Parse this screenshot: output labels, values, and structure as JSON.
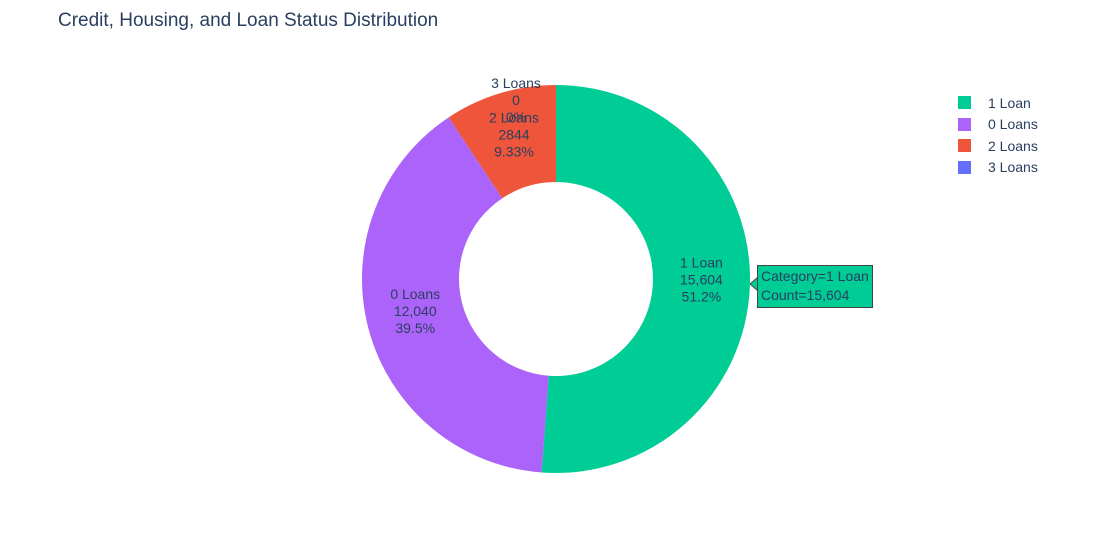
{
  "chart_data": {
    "type": "pie",
    "hole": 0.5,
    "title": "Credit, Housing, and Loan Status Distribution",
    "labels": [
      "1 Loan",
      "0 Loans",
      "2 Loans",
      "3 Loans"
    ],
    "values": [
      15604,
      12040,
      2844,
      0
    ],
    "value_text": [
      "15,604",
      "12,040",
      "2844",
      "0"
    ],
    "percent_text": [
      "51.2%",
      "39.5%",
      "9.33%",
      "0%"
    ],
    "colors": [
      "#00cc96",
      "#ab63fa",
      "#ef553b",
      "#636efa"
    ],
    "legend": {
      "placement": "top-right",
      "items": [
        "1 Loan",
        "0 Loans",
        "2 Loans",
        "3 Loans"
      ]
    },
    "hover": {
      "line1": "Category=1 Loan",
      "line2": "Count=15,604",
      "color": "#00cc96"
    }
  }
}
